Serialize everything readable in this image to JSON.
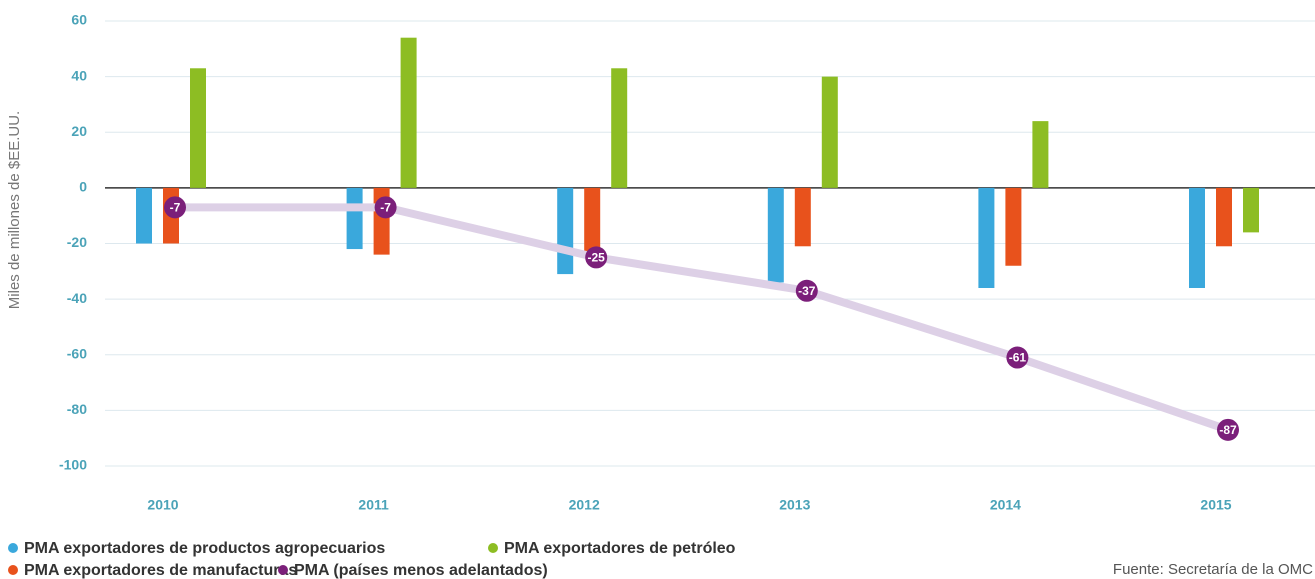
{
  "chart_data": {
    "type": "bar",
    "y_label": "Miles de millones de $EE.UU.",
    "source": "Fuente: Secretaría de la OMC",
    "categories": [
      "2010",
      "2011",
      "2012",
      "2013",
      "2014",
      "2015"
    ],
    "series": [
      {
        "name": "PMA exportadores de productos agropecuarios",
        "color": "#3aa8dc",
        "type": "bar",
        "values": [
          -20,
          -22,
          -31,
          -34,
          -36,
          -36
        ]
      },
      {
        "name": "PMA exportadores de manufacturas",
        "color": "#e8521c",
        "type": "bar",
        "values": [
          -20,
          -24,
          -25,
          -21,
          -28,
          -21
        ]
      },
      {
        "name": "PMA exportadores de petróleo",
        "color": "#8dbd23",
        "type": "bar",
        "values": [
          43,
          54,
          43,
          40,
          24,
          -16
        ]
      },
      {
        "name": "PMA (países menos adelantados)",
        "color": "#7b1f7a",
        "type": "line",
        "line_color": "#ddd0e6",
        "values": [
          -7,
          -7,
          -25,
          -37,
          -61,
          -87
        ]
      }
    ],
    "ylim": [
      -100,
      60
    ],
    "yticks": [
      60,
      40,
      20,
      0,
      -20,
      -40,
      -60,
      -80,
      -100
    ],
    "grid": true
  }
}
